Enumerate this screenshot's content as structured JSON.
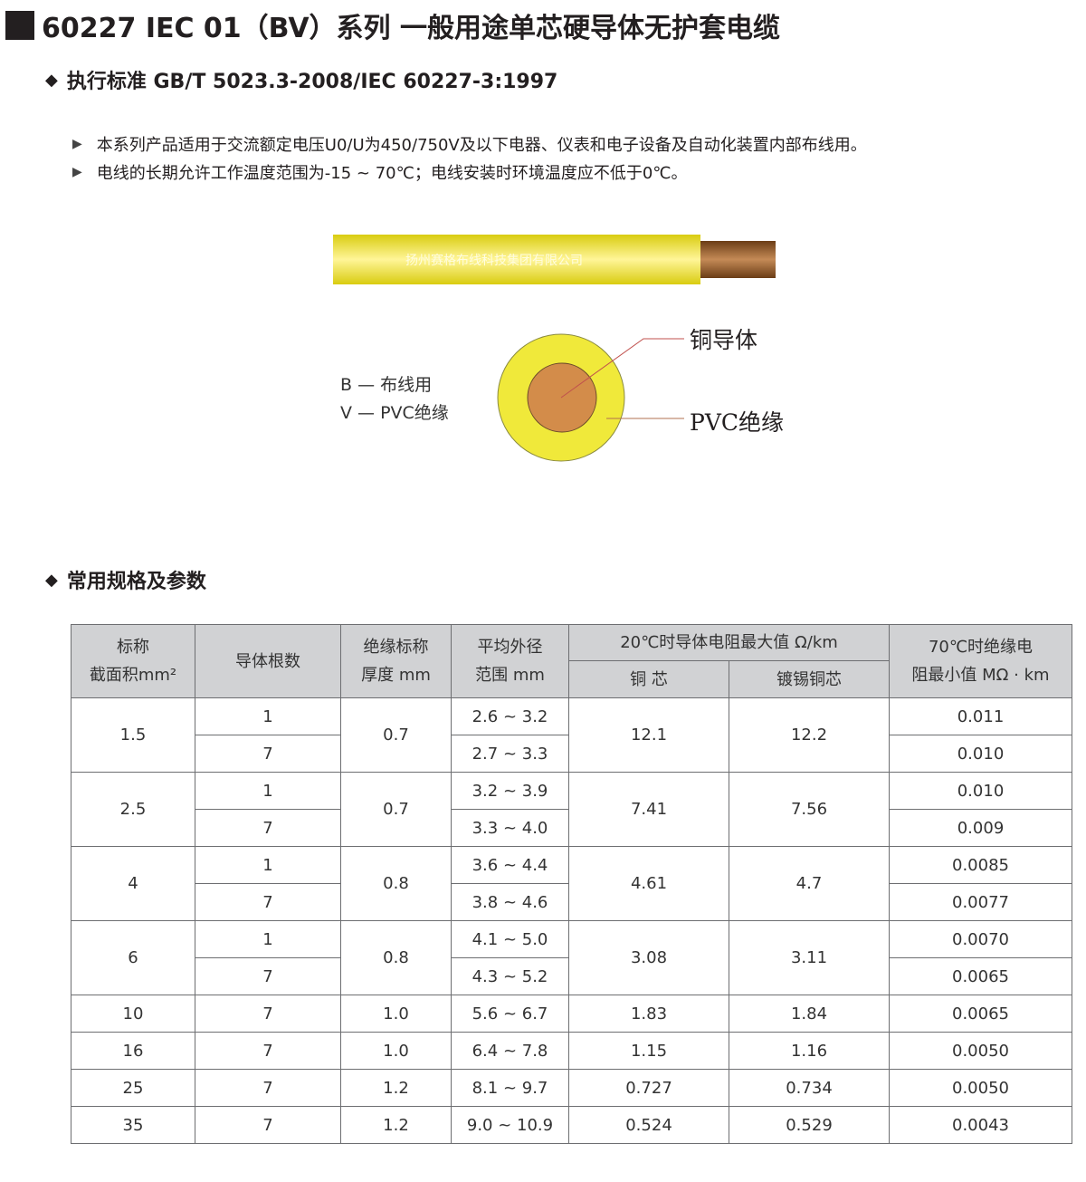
{
  "title": "60227 IEC 01（BV）系列 一般用途单芯硬导体无护套电缆",
  "standard": "执行标准 GB/T 5023.3-2008/IEC 60227-3:1997",
  "bullets": [
    "本系列产品适用于交流额定电压U0/U为450/750V及以下电器、仪表和电子设备及自动化装置内部布线用。",
    "电线的长期允许工作温度范围为-15 ~ 70℃；电线安装时环境温度应不低于0℃。"
  ],
  "cable_print": "扬州赛格布线科技集团有限公司",
  "legend": [
    "B — 布线用",
    "V — PVC绝缘"
  ],
  "callouts": {
    "conductor": "铜导体",
    "insulation": "PVC绝缘"
  },
  "colors": {
    "insulation": "#f0e93a",
    "conductor": "#d38c4a",
    "header_bg": "#d1d2d4"
  },
  "section2": "常用规格及参数",
  "table": {
    "headers": {
      "area": [
        "标称",
        "截面积mm²"
      ],
      "strands": "导体根数",
      "thickness": [
        "绝缘标称",
        "厚度 mm"
      ],
      "diameter": [
        "平均外径",
        "范围 mm"
      ],
      "resistance": "20℃时导体电阻最大值 Ω/km",
      "copper": "铜 芯",
      "tinned": "镀锡铜芯",
      "insulation_res": [
        "70℃时绝缘电",
        "阻最小值 MΩ · km"
      ]
    },
    "groups": [
      {
        "area": "1.5",
        "thickness": "0.7",
        "copper": "12.1",
        "tinned": "12.2",
        "rows": [
          {
            "strands": "1",
            "diameter": "2.6 ~ 3.2",
            "ir": "0.011"
          },
          {
            "strands": "7",
            "diameter": "2.7 ~ 3.3",
            "ir": "0.010"
          }
        ]
      },
      {
        "area": "2.5",
        "thickness": "0.7",
        "copper": "7.41",
        "tinned": "7.56",
        "rows": [
          {
            "strands": "1",
            "diameter": "3.2 ~ 3.9",
            "ir": "0.010"
          },
          {
            "strands": "7",
            "diameter": "3.3 ~ 4.0",
            "ir": "0.009"
          }
        ]
      },
      {
        "area": "4",
        "thickness": "0.8",
        "copper": "4.61",
        "tinned": "4.7",
        "rows": [
          {
            "strands": "1",
            "diameter": "3.6 ~ 4.4",
            "ir": "0.0085"
          },
          {
            "strands": "7",
            "diameter": "3.8 ~ 4.6",
            "ir": "0.0077"
          }
        ]
      },
      {
        "area": "6",
        "thickness": "0.8",
        "copper": "3.08",
        "tinned": "3.11",
        "rows": [
          {
            "strands": "1",
            "diameter": "4.1 ~ 5.0",
            "ir": "0.0070"
          },
          {
            "strands": "7",
            "diameter": "4.3 ~ 5.2",
            "ir": "0.0065"
          }
        ]
      },
      {
        "area": "10",
        "thickness": "1.0",
        "copper": "1.83",
        "tinned": "1.84",
        "rows": [
          {
            "strands": "7",
            "diameter": "5.6 ~ 6.7",
            "ir": "0.0065"
          }
        ]
      },
      {
        "area": "16",
        "thickness": "1.0",
        "copper": "1.15",
        "tinned": "1.16",
        "rows": [
          {
            "strands": "7",
            "diameter": "6.4 ~ 7.8",
            "ir": "0.0050"
          }
        ]
      },
      {
        "area": "25",
        "thickness": "1.2",
        "copper": "0.727",
        "tinned": "0.734",
        "rows": [
          {
            "strands": "7",
            "diameter": "8.1 ~ 9.7",
            "ir": "0.0050"
          }
        ]
      },
      {
        "area": "35",
        "thickness": "1.2",
        "copper": "0.524",
        "tinned": "0.529",
        "rows": [
          {
            "strands": "7",
            "diameter": "9.0 ~ 10.9",
            "ir": "0.0043"
          }
        ]
      }
    ]
  }
}
